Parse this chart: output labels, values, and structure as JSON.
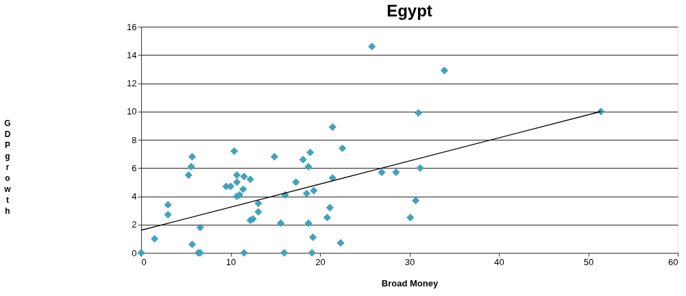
{
  "chart_data": {
    "type": "scatter",
    "title": "Egypt",
    "xlabel": "Broad Money",
    "ylabel": "GDP growth",
    "xlim": [
      0,
      60
    ],
    "xticks": [
      0,
      10,
      20,
      30,
      40,
      50,
      60
    ],
    "ylim": [
      0,
      16
    ],
    "yticks": [
      0,
      2,
      4,
      6,
      8,
      10,
      12,
      14,
      16
    ],
    "grid": "y",
    "series": [
      {
        "color": "#3fa4bf",
        "marker": "diamond",
        "x": [
          0,
          1.5,
          3.0,
          3.0,
          5.7,
          5.6,
          5.3,
          5.7,
          6.6,
          6.4,
          6.6,
          9.5,
          10.0,
          10.4,
          10.7,
          10.7,
          10.7,
          11.0,
          11.4,
          11.5,
          12.2,
          11.5,
          12.2,
          12.5,
          13.1,
          13.1,
          14.9,
          15.6,
          16.1,
          16.0,
          17.3,
          18.1,
          18.9,
          18.7,
          18.5,
          18.7,
          19.3,
          19.2,
          19.1,
          20.8,
          21.1,
          21.4,
          21.4,
          22.5,
          22.3,
          25.8,
          26.9,
          28.5,
          30.1,
          30.7,
          31.0,
          31.2,
          33.9,
          51.4
        ],
        "values": [
          0,
          1.0,
          3.4,
          2.7,
          6.8,
          6.1,
          5.5,
          0.6,
          1.8,
          0,
          0,
          4.7,
          4.7,
          7.2,
          5.5,
          5.0,
          4.0,
          4.1,
          4.5,
          5.4,
          5.2,
          0,
          2.3,
          2.4,
          3.5,
          2.9,
          6.8,
          2.1,
          4.1,
          0,
          5.0,
          6.6,
          7.1,
          6.1,
          4.2,
          2.1,
          4.4,
          1.1,
          0,
          2.5,
          3.2,
          5.3,
          8.9,
          7.4,
          0.7,
          14.6,
          5.7,
          5.7,
          2.5,
          3.7,
          9.9,
          6.0,
          12.9,
          10.0
        ]
      },
      {
        "type": "line",
        "color": "#000000",
        "line_style": "solid",
        "marker": "none",
        "x": [
          0,
          51.4
        ],
        "values": [
          1.6,
          10.0
        ]
      }
    ]
  }
}
